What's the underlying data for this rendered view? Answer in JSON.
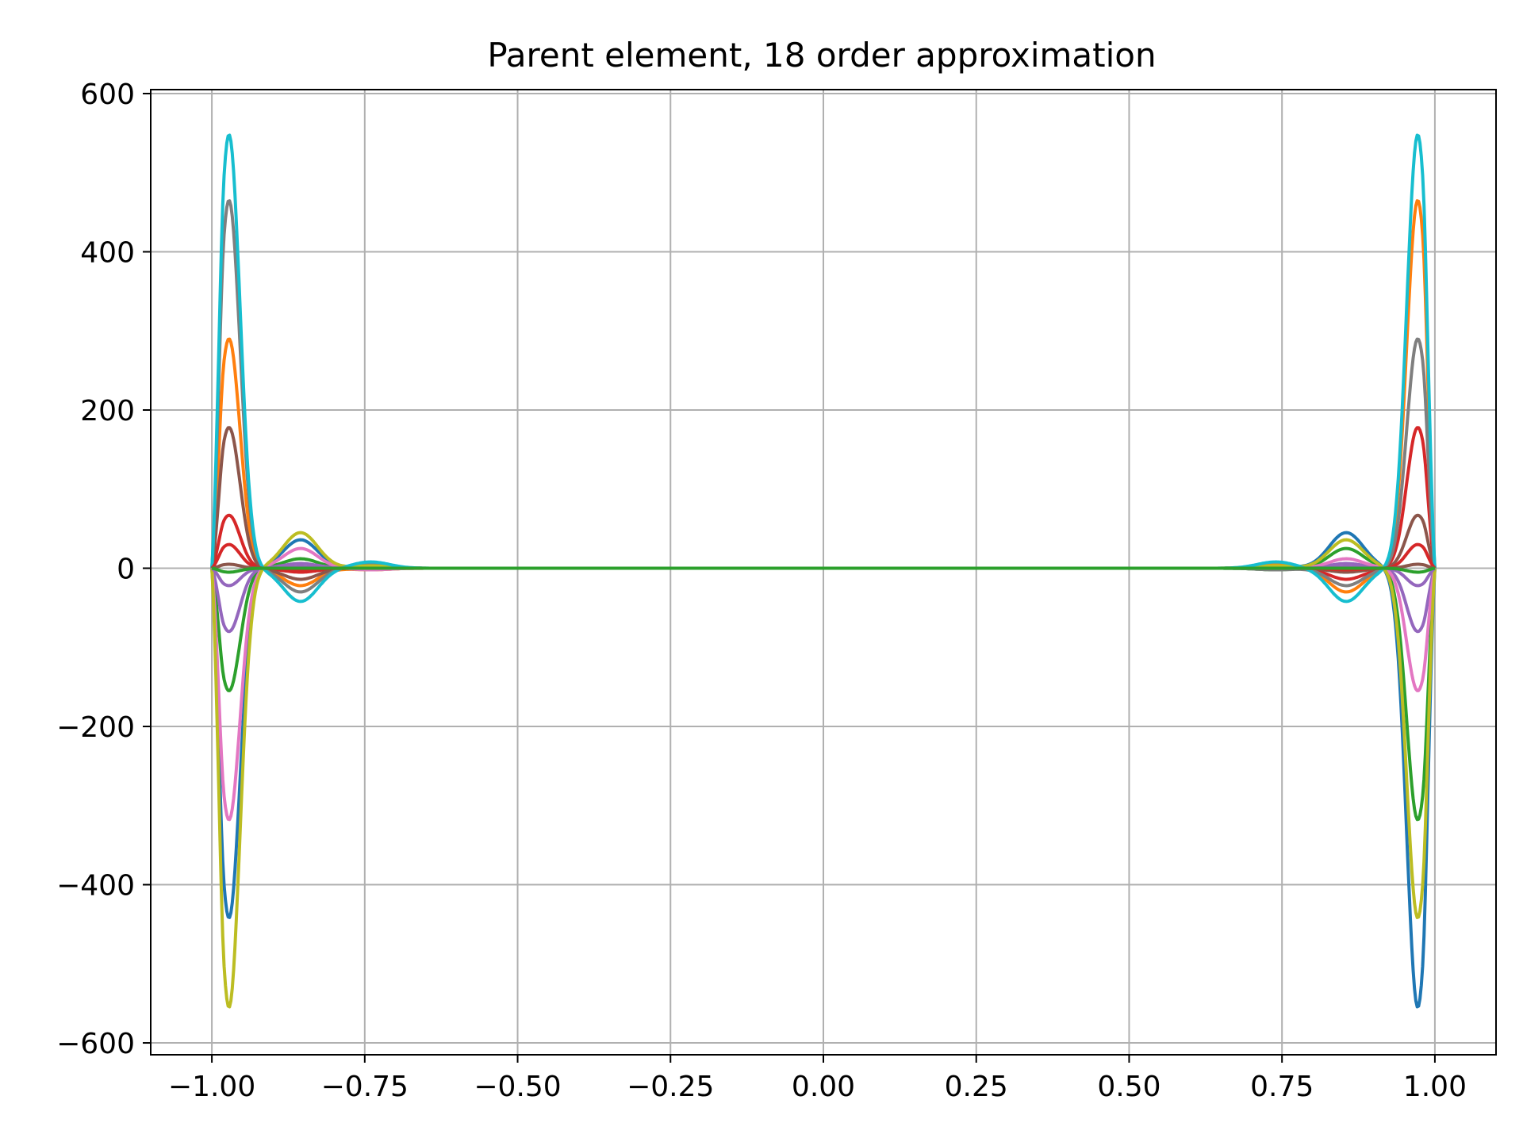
{
  "chart_data": {
    "type": "line",
    "title": "Parent element, 18 order approximation",
    "xlabel": "",
    "ylabel": "",
    "xlim": [
      -1.1,
      1.1
    ],
    "ylim": [
      -615,
      605
    ],
    "xticks": [
      -1.0,
      -0.75,
      -0.5,
      -0.25,
      0.0,
      0.25,
      0.5,
      0.75,
      1.0
    ],
    "xtick_labels": [
      "−1.00",
      "−0.75",
      "−0.50",
      "−0.25",
      "0.00",
      "0.25",
      "0.50",
      "0.75",
      "1.00"
    ],
    "yticks": [
      600,
      400,
      200,
      0,
      -200,
      -400,
      -600
    ],
    "ytick_labels": [
      "600",
      "400",
      "200",
      "0",
      "−200",
      "−400",
      "−600"
    ],
    "grid": true,
    "legend": "none",
    "series": [
      {
        "color": "#1f77b4",
        "left": [
          -442,
          36,
          3
        ],
        "right": [
          -555,
          45,
          3
        ]
      },
      {
        "color": "#ff7f0e",
        "left": [
          290,
          -22,
          -2
        ],
        "right": [
          465,
          -30,
          6
        ]
      },
      {
        "color": "#2ca02c",
        "left": [
          -155,
          12,
          1
        ],
        "right": [
          -318,
          25,
          -2
        ]
      },
      {
        "color": "#d62728",
        "left": [
          67,
          -5,
          0.5
        ],
        "right": [
          178,
          -14,
          1
        ]
      },
      {
        "color": "#9467bd",
        "left": [
          -80,
          6,
          0.5
        ],
        "right": [
          -80,
          6,
          0.5
        ]
      },
      {
        "color": "#8c564b",
        "left": [
          178,
          -14,
          1
        ],
        "right": [
          67,
          -5,
          0.5
        ]
      },
      {
        "color": "#e377c2",
        "left": [
          -318,
          25,
          -2
        ],
        "right": [
          -155,
          12,
          1
        ]
      },
      {
        "color": "#7f7f7f",
        "left": [
          465,
          -30,
          6
        ],
        "right": [
          290,
          -22,
          -2
        ]
      },
      {
        "color": "#bcbd22",
        "left": [
          -555,
          45,
          3
        ],
        "right": [
          -442,
          36,
          3
        ]
      },
      {
        "color": "#17becf",
        "left": [
          548,
          -42,
          8
        ],
        "right": [
          548,
          -42,
          8
        ]
      },
      {
        "color": "#d62728",
        "left": [
          30,
          -2,
          0
        ],
        "right": [
          30,
          -2,
          0
        ]
      },
      {
        "color": "#9467bd",
        "left": [
          -22,
          2,
          0
        ],
        "right": [
          -22,
          2,
          0
        ]
      },
      {
        "color": "#8c564b",
        "left": [
          5,
          0,
          0
        ],
        "right": [
          5,
          0,
          0
        ]
      },
      {
        "color": "#2ca02c",
        "left": [
          -5,
          0,
          0
        ],
        "right": [
          -5,
          0,
          0
        ]
      }
    ]
  }
}
